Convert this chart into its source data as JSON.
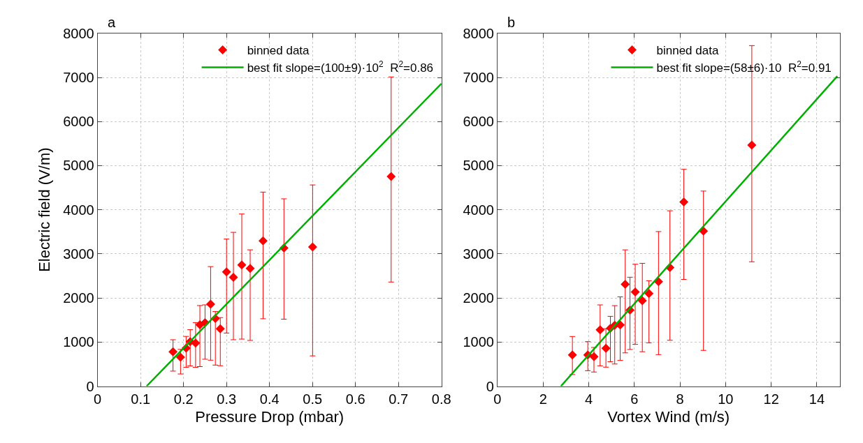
{
  "chart_data": [
    {
      "type": "scatter",
      "title": "a",
      "xlabel": "Pressure Drop (mbar)",
      "ylabel": "Electric field (V/m)",
      "xlim": [
        0,
        0.8
      ],
      "xticks": [
        0,
        0.1,
        0.2,
        0.3,
        0.4,
        0.5,
        0.6,
        0.7,
        0.8
      ],
      "ylim": [
        0,
        8000
      ],
      "yticks": [
        0,
        1000,
        2000,
        3000,
        4000,
        5000,
        6000,
        7000,
        8000
      ],
      "grid": true,
      "legend": "top right",
      "series": [
        {
          "name": "binned data",
          "marker": "diamond",
          "color": "#ff0000",
          "x": [
            0.1755,
            0.193,
            0.206,
            0.2155,
            0.228,
            0.238,
            0.25,
            0.263,
            0.274,
            0.2855,
            0.3,
            0.316,
            0.3355,
            0.355,
            0.385,
            0.4336,
            0.5003,
            0.683
          ],
          "values": [
            778,
            656,
            863,
            1010,
            976,
            1391,
            1441,
            1858,
            1533,
            1300,
            2589,
            2467,
            2750,
            2670,
            3294,
            3131,
            3157,
            4755
          ],
          "errors": [
            [
              341,
              1052
            ],
            [
              276,
              833
            ],
            [
              428,
              1128
            ],
            [
              458,
              1280
            ],
            [
              428,
              1441
            ],
            [
              443,
              1828
            ],
            [
              610,
              1843
            ],
            [
              589,
              2711
            ],
            [
              478,
              1691
            ],
            [
              463,
              1554
            ],
            [
              1204,
              3335
            ],
            [
              1052,
              3487
            ],
            [
              1067,
              3903
            ],
            [
              1037,
              3091
            ],
            [
              1528,
              4400
            ],
            [
              1518,
              4248
            ],
            [
              686,
              4562
            ],
            [
              2361,
              7012
            ]
          ]
        },
        {
          "name": "best fit slope=(100±9)·10$^{2}$  R$^{2}$=0.86",
          "type": "line",
          "color": "#00b000",
          "x": [
            0.114,
            0.8
          ],
          "values": [
            0,
            6860
          ]
        }
      ]
    },
    {
      "type": "scatter",
      "title": "b",
      "xlabel": "Vortex Wind (m/s)",
      "xlim": [
        0,
        15
      ],
      "xticks": [
        0,
        2,
        4,
        6,
        8,
        10,
        12,
        14
      ],
      "ylim": [
        0,
        8000
      ],
      "yticks": [
        0,
        1000,
        2000,
        3000,
        4000,
        5000,
        6000,
        7000,
        8000
      ],
      "grid": true,
      "legend": "top right",
      "series": [
        {
          "name": "binned data",
          "marker": "diamond",
          "color": "#ff0000",
          "x": [
            3.285,
            3.96,
            4.23,
            4.5,
            4.755,
            4.95,
            5.14,
            5.38,
            5.6,
            5.81,
            6.04,
            6.35,
            6.64,
            7.06,
            7.56,
            8.17,
            9.03,
            11.15
          ],
          "values": [
            709,
            709,
            670,
            1279,
            857,
            1314,
            1379,
            1390,
            2308,
            1724,
            2135,
            1938,
            2100,
            2368,
            2688,
            4175,
            3516,
            5464
          ],
          "errors": [
            [
              263,
              1126
            ],
            [
              350,
              1009
            ],
            [
              320,
              877
            ],
            [
              461,
              1842
            ],
            [
              431,
              1303
            ],
            [
              553,
              1583
            ],
            [
              502,
              1826
            ],
            [
              583,
              2024
            ],
            [
              755,
              3090
            ],
            [
              831,
              2470
            ],
            [
              948,
              2764
            ],
            [
              781,
              2785
            ],
            [
              983,
              2390
            ],
            [
              715,
              3505
            ],
            [
              1040,
              3977
            ],
            [
              2420,
              4916
            ],
            [
              811,
              4423
            ],
            [
              2820,
              7722
            ]
          ]
        },
        {
          "name": "best fit slope=(58±6)·10  R$^{2}$=0.91",
          "type": "line",
          "color": "#00b000",
          "x": [
            2.78,
            14.9
          ],
          "values": [
            0,
            7030
          ]
        }
      ]
    }
  ]
}
